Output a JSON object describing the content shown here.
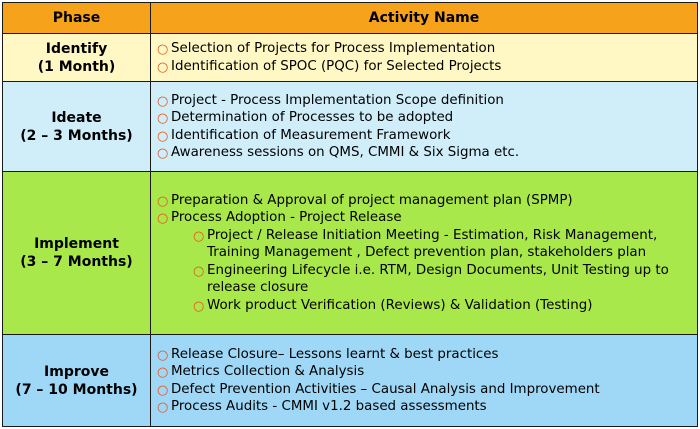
{
  "table": {
    "header": {
      "phase": "Phase",
      "activity": "Activity Name"
    },
    "colors": {
      "header": "#f7a21b",
      "identify": "#fff8c4",
      "ideate": "#cfeefa",
      "implement": "#a9e84a",
      "improve": "#9ed8f6",
      "bullet": "#e8531c"
    },
    "bullet_icon": "circle-bullet-icon",
    "rows": [
      {
        "name": "Identify",
        "duration": "(1 Month)",
        "items": [
          "Selection of Projects for Process Implementation",
          "Identification of SPOC (PQC) for Selected Projects"
        ]
      },
      {
        "name": "Ideate",
        "duration": "(2 – 3 Months)",
        "items": [
          "Project - Process Implementation Scope definition",
          "Determination of Processes to be adopted",
          "Identification of Measurement Framework",
          "Awareness sessions on QMS, CMMI & Six Sigma etc."
        ]
      },
      {
        "name": "Implement",
        "duration": "(3 – 7 Months)",
        "items": [
          "Preparation & Approval of project management plan (SPMP)",
          "Process Adoption - Project Release"
        ],
        "subitems": [
          "Project / Release Initiation Meeting - Estimation, Risk Management, Training Management , Defect prevention plan, stakeholders plan",
          "Engineering Lifecycle i.e. RTM, Design Documents, Unit Testing up to release closure",
          "Work product Verification (Reviews) & Validation (Testing)"
        ]
      },
      {
        "name": "Improve",
        "duration": "(7 – 10 Months)",
        "items": [
          "Release Closure– Lessons learnt & best practices",
          "Metrics Collection & Analysis",
          "Defect Prevention Activities – Causal Analysis and Improvement",
          "Process Audits - CMMI v1.2 based assessments"
        ]
      }
    ]
  }
}
